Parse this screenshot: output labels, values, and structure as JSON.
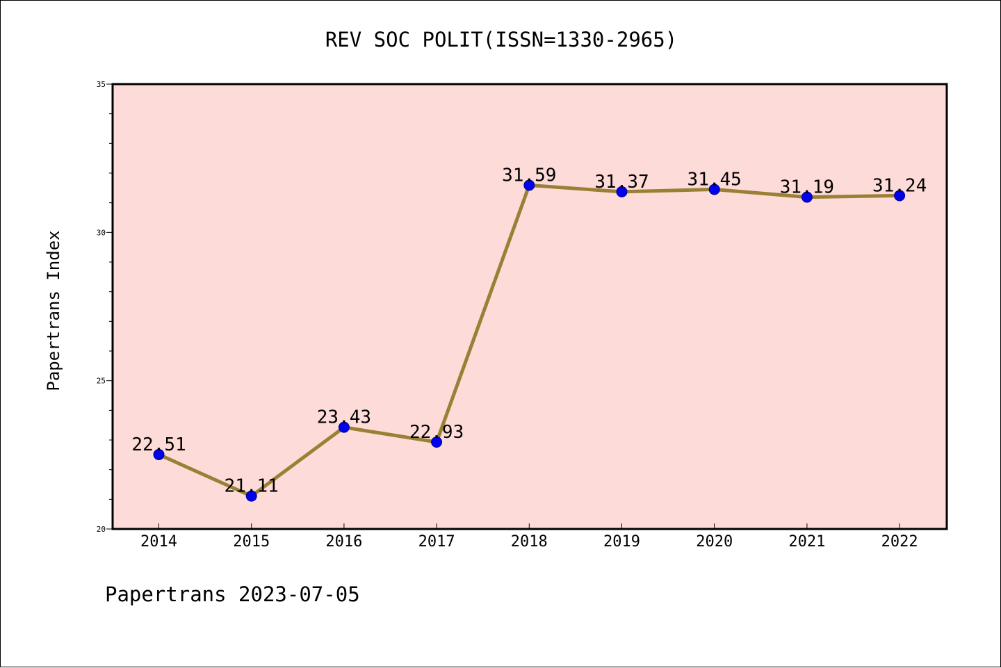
{
  "chart_data": {
    "type": "line",
    "title": "REV SOC POLIT(ISSN=1330-2965)",
    "xlabel": "",
    "ylabel": "Papertrans Index",
    "categories": [
      "2014",
      "2015",
      "2016",
      "2017",
      "2018",
      "2019",
      "2020",
      "2021",
      "2022"
    ],
    "series": [
      {
        "values": [
          22.51,
          21.11,
          23.43,
          22.93,
          31.59,
          31.37,
          31.45,
          31.19,
          31.24
        ]
      }
    ],
    "data_labels": [
      "22.51",
      "21.11",
      "23.43",
      "22.93",
      "31.59",
      "31.37",
      "31.45",
      "31.19",
      "31.24"
    ],
    "ylim": [
      20,
      35
    ],
    "yticks": [
      "20",
      "25",
      "30",
      "35"
    ],
    "grid": false,
    "colors": {
      "plot_background": "#fddbd8",
      "line": "#9a8035",
      "marker": "#0000ee",
      "marker_edge": "#00008b"
    }
  },
  "footer": {
    "text": "Papertrans 2023-07-05"
  }
}
